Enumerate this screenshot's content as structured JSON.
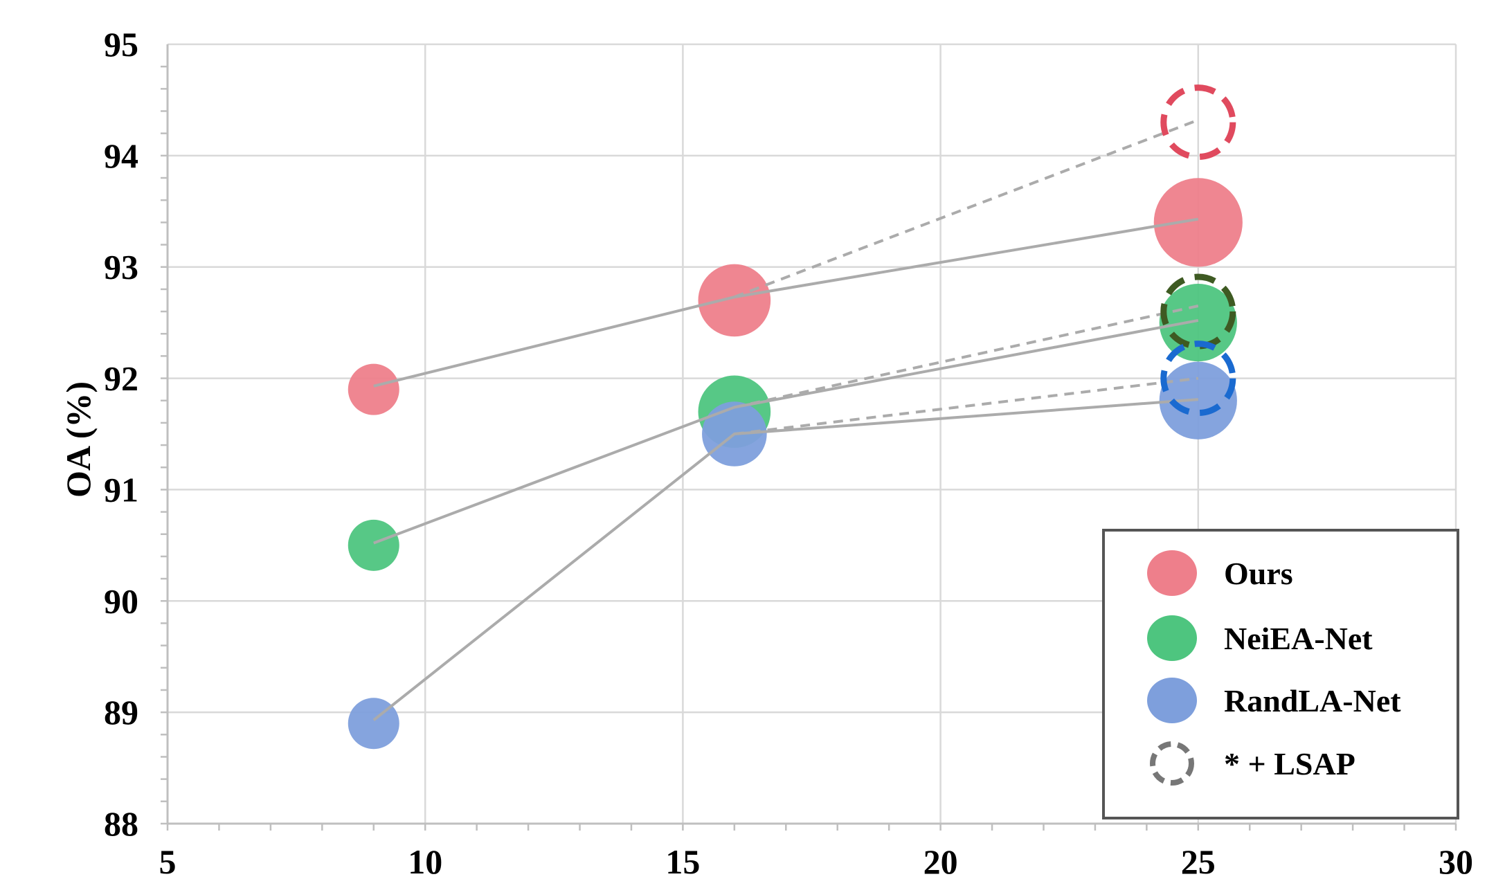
{
  "chart_data": {
    "type": "scatter",
    "title": "",
    "xlabel": "",
    "ylabel": "OA (%)",
    "xlim": [
      5,
      30
    ],
    "ylim": [
      88,
      95
    ],
    "xticks": [
      5,
      10,
      15,
      20,
      25,
      30
    ],
    "yticks": [
      88,
      89,
      90,
      91,
      92,
      93,
      94,
      95
    ],
    "grid": true,
    "legend_position": "bottom-right",
    "series": [
      {
        "name": "Ours",
        "color": "#ee7f8b",
        "points": [
          {
            "x": 9,
            "y": 91.9,
            "size": 1
          },
          {
            "x": 16,
            "y": 92.7,
            "size": 2
          },
          {
            "x": 25,
            "y": 93.4,
            "size": 3
          }
        ]
      },
      {
        "name": "NeiEA-Net",
        "color": "#4ec57f",
        "points": [
          {
            "x": 9,
            "y": 90.5,
            "size": 1
          },
          {
            "x": 16,
            "y": 91.7,
            "size": 2
          },
          {
            "x": 25,
            "y": 92.5,
            "size": 2.3
          }
        ]
      },
      {
        "name": "RandLA-Net",
        "color": "#7e9fdc",
        "points": [
          {
            "x": 9,
            "y": 88.9,
            "size": 1
          },
          {
            "x": 16,
            "y": 91.5,
            "size": 1.6
          },
          {
            "x": 25,
            "y": 91.8,
            "size": 2.3
          }
        ]
      }
    ],
    "lsap_points": [
      {
        "base": "Ours",
        "x": 25,
        "y": 94.3,
        "color": "#e04a5e"
      },
      {
        "base": "NeiEA-Net",
        "x": 25,
        "y": 92.6,
        "color": "#3e5a22"
      },
      {
        "base": "RandLA-Net",
        "x": 25,
        "y": 92.0,
        "color": "#1a6ad0"
      }
    ],
    "trend_lines": [
      {
        "series": "Ours",
        "points": [
          [
            9,
            91.93
          ],
          [
            16,
            92.73
          ],
          [
            25,
            93.43
          ]
        ]
      },
      {
        "series": "NeiEA-Net",
        "points": [
          [
            9,
            90.52
          ],
          [
            16,
            91.74
          ],
          [
            25,
            92.52
          ]
        ]
      },
      {
        "series": "RandLA-Net",
        "points": [
          [
            9,
            88.93
          ],
          [
            16,
            91.5
          ],
          [
            25,
            91.81
          ]
        ]
      }
    ],
    "lsap_trend_lines": [
      {
        "series": "Ours",
        "points": [
          [
            16,
            92.73
          ],
          [
            25,
            94.32
          ]
        ]
      },
      {
        "series": "NeiEA-Net",
        "points": [
          [
            16,
            91.74
          ],
          [
            25,
            92.65
          ]
        ]
      },
      {
        "series": "RandLA-Net",
        "points": [
          [
            16,
            91.5
          ],
          [
            25,
            92.0
          ]
        ]
      }
    ],
    "legend": [
      {
        "label": "Ours",
        "color": "#ee7f8b",
        "style": "filled"
      },
      {
        "label": "NeiEA-Net",
        "color": "#4ec57f",
        "style": "filled"
      },
      {
        "label": "RandLA-Net",
        "color": "#7e9fdc",
        "style": "filled"
      },
      {
        "label": "* + LSAP",
        "color": "#777777",
        "style": "dashed"
      }
    ]
  }
}
